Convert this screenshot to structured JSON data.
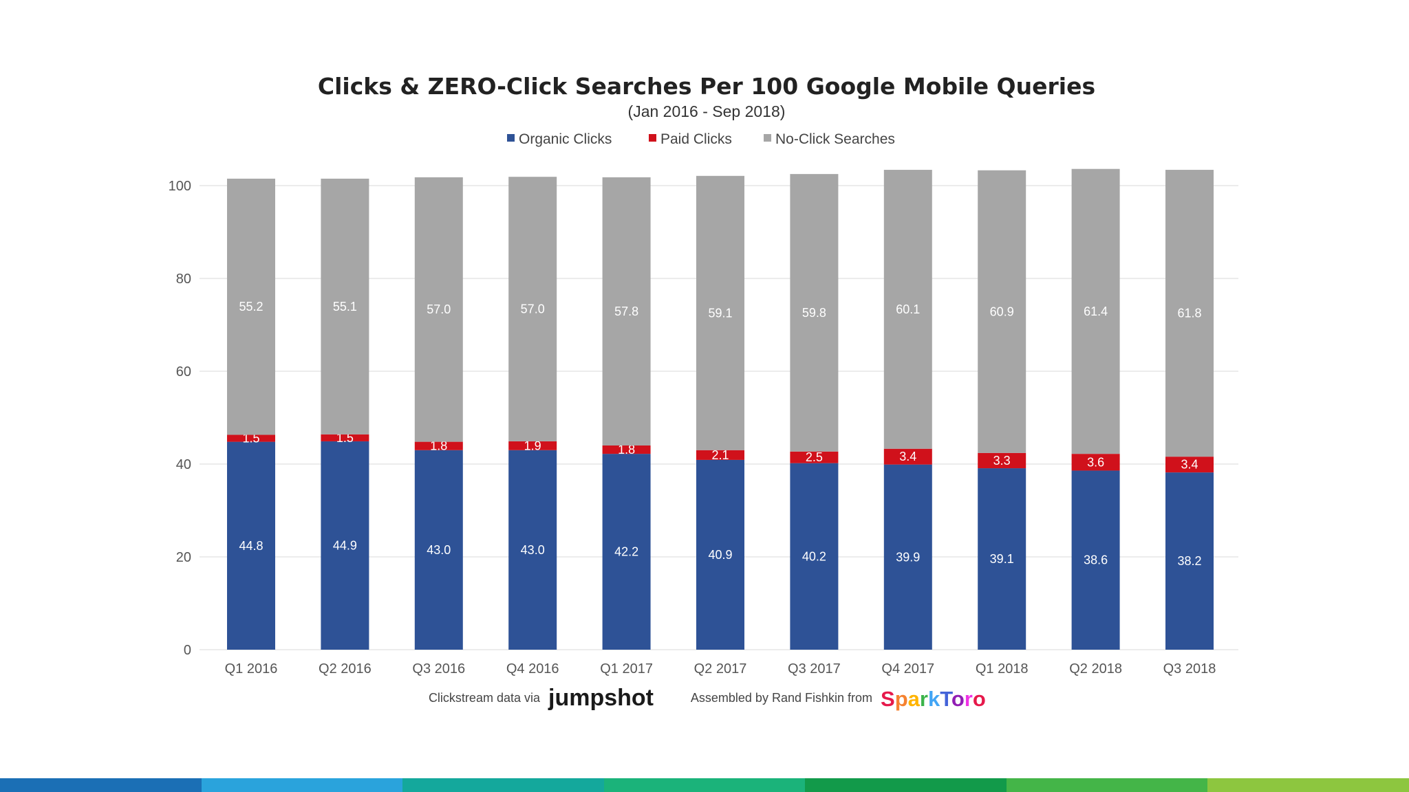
{
  "chart_data": {
    "type": "bar",
    "stacked": true,
    "title": "Clicks & ZERO-Click Searches Per 100 Google Mobile Queries",
    "subtitle": "(Jan 2016 - Sep 2018)",
    "categories": [
      "Q1 2016",
      "Q2 2016",
      "Q3 2016",
      "Q4 2016",
      "Q1 2017",
      "Q2 2017",
      "Q3 2017",
      "Q4 2017",
      "Q1 2018",
      "Q2 2018",
      "Q3 2018"
    ],
    "series": [
      {
        "name": "Organic Clicks",
        "color": "#2e5296",
        "values": [
          44.8,
          44.9,
          43.0,
          43.0,
          42.2,
          40.9,
          40.2,
          39.9,
          39.1,
          38.6,
          38.2
        ]
      },
      {
        "name": "Paid Clicks",
        "color": "#d0111b",
        "values": [
          1.5,
          1.5,
          1.8,
          1.9,
          1.8,
          2.1,
          2.5,
          3.4,
          3.3,
          3.6,
          3.4
        ]
      },
      {
        "name": "No-Click Searches",
        "color": "#a6a6a6",
        "values": [
          55.2,
          55.1,
          57.0,
          57.0,
          57.8,
          59.1,
          59.8,
          60.1,
          60.9,
          61.4,
          61.8
        ]
      }
    ],
    "data_labels": {
      "Organic Clicks": [
        "44.8",
        "44.9",
        "43.0",
        "43.0",
        "42.2",
        "40.9",
        "40.2",
        "39.9",
        "39.1",
        "38.6",
        "38.2"
      ],
      "Paid Clicks": [
        "1.5",
        "1.5",
        "1.8",
        "1.9",
        "1.8",
        "2.1",
        "2.5",
        "3.4",
        "3.3",
        "3.6",
        "3.4"
      ],
      "No-Click Searches": [
        "55.2",
        "55.1",
        "57.0",
        "57.0",
        "57.8",
        "59.1",
        "59.8",
        "60.1",
        "60.9",
        "61.4",
        "61.8"
      ]
    },
    "ylim": [
      0,
      100
    ],
    "yticks": [
      "0",
      "20",
      "40",
      "60",
      "80",
      "100"
    ],
    "grid": true,
    "legend": "top-center"
  },
  "credits": {
    "source_prefix": "Clickstream data via",
    "source_logo": "jumpshot",
    "assembled_prefix": "Assembled by Rand Fishkin from",
    "assembled_logo": "SparkToro"
  },
  "footer_bar_colors": [
    "#1b6fb5",
    "#2aa3dc",
    "#14a89c",
    "#1bb37a",
    "#129a4a",
    "#44b548",
    "#8dc63f"
  ],
  "colors": {
    "background": "#ffffff",
    "grid": "#e6e6e6"
  }
}
